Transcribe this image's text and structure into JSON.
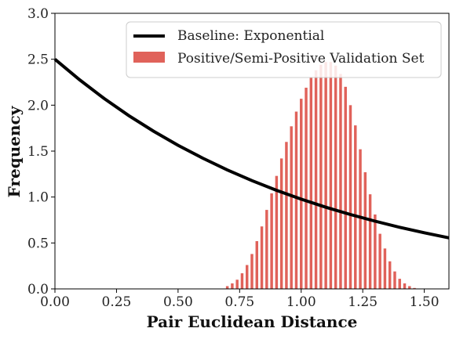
{
  "chart_data": {
    "type": "bar",
    "xlabel": "Pair Euclidean Distance",
    "ylabel": "Frequency",
    "xlim": [
      0,
      1.6
    ],
    "ylim": [
      0,
      3.0
    ],
    "xticks": [
      "0.00",
      "0.25",
      "0.50",
      "0.75",
      "1.00",
      "1.25",
      "1.50"
    ],
    "yticks": [
      "0.0",
      "0.5",
      "1.0",
      "1.5",
      "2.0",
      "2.5",
      "3.0"
    ],
    "legend_position": "top-right",
    "series": [
      {
        "name": "Baseline: Exponential",
        "type": "line",
        "color": "#000000",
        "x": [
          0.0,
          0.1,
          0.2,
          0.3,
          0.4,
          0.5,
          0.6,
          0.7,
          0.8,
          0.9,
          1.0,
          1.1,
          1.2,
          1.3,
          1.4,
          1.5,
          1.6
        ],
        "y": [
          2.5,
          2.276,
          2.072,
          1.886,
          1.717,
          1.563,
          1.423,
          1.295,
          1.179,
          1.073,
          0.977,
          0.889,
          0.81,
          0.737,
          0.671,
          0.611,
          0.556
        ]
      },
      {
        "name": "Positive/Semi-Positive Validation Set",
        "type": "bar",
        "color": "#e0625a",
        "x": [
          0.7,
          0.72,
          0.74,
          0.76,
          0.78,
          0.8,
          0.82,
          0.84,
          0.86,
          0.88,
          0.9,
          0.92,
          0.94,
          0.96,
          0.98,
          1.0,
          1.02,
          1.04,
          1.06,
          1.08,
          1.1,
          1.12,
          1.14,
          1.16,
          1.18,
          1.2,
          1.22,
          1.24,
          1.26,
          1.28,
          1.3,
          1.32,
          1.34,
          1.36,
          1.38,
          1.4,
          1.42,
          1.44,
          1.46
        ],
        "y": [
          0.03,
          0.06,
          0.1,
          0.17,
          0.26,
          0.38,
          0.52,
          0.68,
          0.86,
          1.04,
          1.23,
          1.42,
          1.6,
          1.77,
          1.93,
          2.07,
          2.19,
          2.3,
          2.38,
          2.44,
          2.47,
          2.47,
          2.43,
          2.34,
          2.2,
          2.0,
          1.78,
          1.52,
          1.27,
          1.03,
          0.81,
          0.6,
          0.44,
          0.3,
          0.19,
          0.11,
          0.06,
          0.03,
          0.01
        ]
      }
    ]
  }
}
